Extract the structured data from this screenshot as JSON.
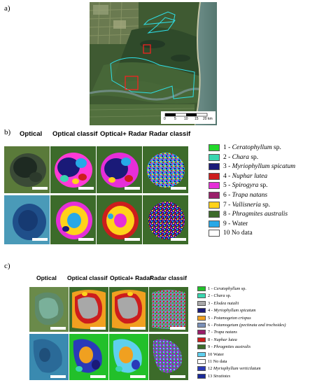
{
  "panels": {
    "a": {
      "label": "a)",
      "scale_ticks": [
        "0",
        "5",
        "10",
        "15",
        "20 km"
      ]
    },
    "b": {
      "label": "b)",
      "columns": [
        "Optical",
        "Optical classif",
        "Optical+ Radar",
        "Radar classif"
      ],
      "legend": [
        {
          "num": "1",
          "sep": " - ",
          "name": "Ceratophyllum",
          "rest": " sp.",
          "color": "#22d82a"
        },
        {
          "num": "2",
          "sep": " - ",
          "name": "Chara",
          "rest": " sp.",
          "color": "#3ad6b0"
        },
        {
          "num": "3",
          "sep": " - ",
          "name": "Myriophyllum spicatum",
          "rest": "",
          "color": "#1a1a78"
        },
        {
          "num": "4",
          "sep": " - ",
          "name": "Nuphar lutea",
          "rest": "",
          "color": "#cc1d1d"
        },
        {
          "num": "5",
          "sep": " - ",
          "name": "Spirogyra",
          "rest": " sp.",
          "color": "#e62ed8"
        },
        {
          "num": "6",
          "sep": " - ",
          "name": "Trapa natans",
          "rest": "",
          "color": "#9a1f6a"
        },
        {
          "num": "7",
          "sep": " - ",
          "name": "Vallisneria",
          "rest": " sp.",
          "color": "#ffd21a"
        },
        {
          "num": "8",
          "sep": " - ",
          "name": "Phragmites australis",
          "rest": "",
          "color": "#3c6b2a"
        },
        {
          "num": "9",
          "sep": " - ",
          "name": "",
          "rest": "Water",
          "color": "#27a8e6"
        },
        {
          "num": "10",
          "sep": " ",
          "name": "",
          "rest": "No data",
          "color": "#ffffff"
        }
      ]
    },
    "c": {
      "label": "c)",
      "columns": [
        "Optical",
        "Optical classif",
        "Optical+ Radar",
        "Radar classif"
      ],
      "legend": [
        {
          "num": "1",
          "sep": " - ",
          "name": "Ceratophyllum",
          "rest": " sp.",
          "color": "#22c02a"
        },
        {
          "num": "2",
          "sep": " - ",
          "name": "Chara",
          "rest": " sp.",
          "color": "#3ad6b0"
        },
        {
          "num": "3",
          "sep": " - ",
          "name": "Elodea nutalii",
          "rest": "",
          "color": "#a8a8a8"
        },
        {
          "num": "4",
          "sep": " - ",
          "name": "Myriophyllum spicatum",
          "rest": "",
          "color": "#1a1a78"
        },
        {
          "num": "5",
          "sep": " - ",
          "name": "Potamogeton crispus",
          "rest": "",
          "color": "#f0a020"
        },
        {
          "num": "6",
          "sep": " - ",
          "name": "Potamogetum (pectinata and trochoides)",
          "rest": "",
          "color": "#7a90b8"
        },
        {
          "num": "7",
          "sep": " - ",
          "name": "Trapa natans",
          "rest": "",
          "color": "#9a1f6a"
        },
        {
          "num": "8",
          "sep": " - ",
          "name": "Nuphar lutea",
          "rest": "",
          "color": "#cc1d1d"
        },
        {
          "num": "9",
          "sep": " - ",
          "name": "Phragmites australis",
          "rest": "",
          "color": "#3c6b2a"
        },
        {
          "num": "10",
          "sep": " ",
          "name": "",
          "rest": "Water",
          "color": "#5fd0ee"
        },
        {
          "num": "11",
          "sep": " ",
          "name": "",
          "rest": "No data",
          "color": "#ffffff"
        },
        {
          "num": "12",
          "sep": " ",
          "name": "Myriophyllum verticilatum",
          "rest": "",
          "color": "#2a3ab8"
        },
        {
          "num": "13",
          "sep": " ",
          "name": "Stratiotes",
          "rest": "",
          "color": "#1a2a9a"
        }
      ]
    }
  }
}
